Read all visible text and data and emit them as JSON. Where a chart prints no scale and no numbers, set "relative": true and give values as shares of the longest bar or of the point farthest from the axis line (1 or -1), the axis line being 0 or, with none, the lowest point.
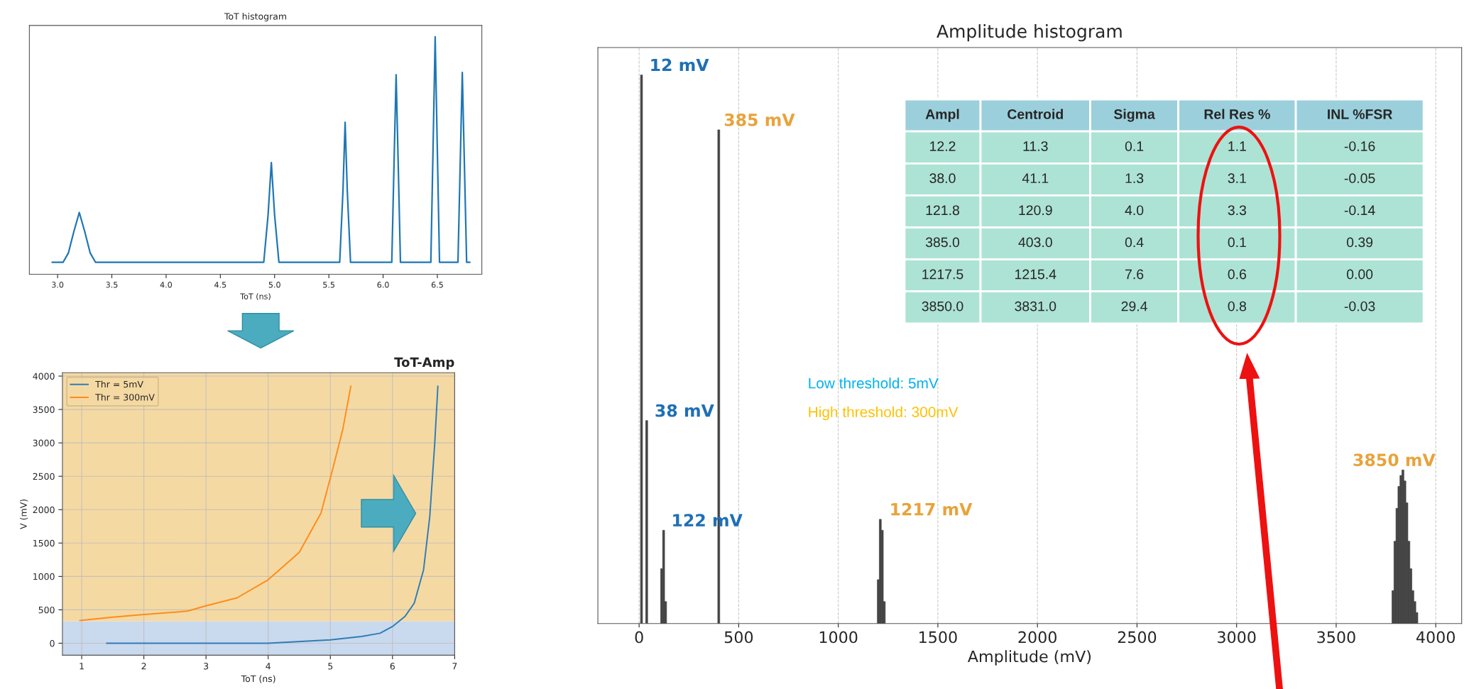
{
  "chart_data": [
    {
      "type": "line",
      "title": "ToT histogram",
      "xlabel": "ToT (ns)",
      "relative": true,
      "tick_labels": "x",
      "xlim": [
        2.74,
        6.91
      ],
      "xticks": [
        {
          "value": 3.0,
          "label": "3.0"
        },
        {
          "value": 3.5,
          "label": "3.5"
        },
        {
          "value": 4.0,
          "label": "4.0"
        },
        {
          "value": 4.5,
          "label": "4.5"
        },
        {
          "value": 5.0,
          "label": "5.0"
        },
        {
          "value": 5.5,
          "label": "5.5"
        },
        {
          "value": 6.0,
          "label": "6.0"
        },
        {
          "value": 6.5,
          "label": "6.5"
        }
      ],
      "grid": false,
      "series": [
        {
          "color": "#1f77b4",
          "x": [
            2.95,
            3.05,
            3.1,
            3.15,
            3.2,
            3.25,
            3.3,
            3.35,
            4.9,
            4.94,
            4.97,
            5.0,
            5.04,
            5.6,
            5.63,
            5.65,
            5.67,
            5.7,
            6.08,
            6.1,
            6.12,
            6.14,
            6.16,
            6.44,
            6.46,
            6.48,
            6.5,
            6.52,
            6.69,
            6.71,
            6.73,
            6.75,
            6.77,
            6.8
          ],
          "values": [
            0.05,
            0.05,
            0.09,
            0.18,
            0.26,
            0.18,
            0.09,
            0.05,
            0.05,
            0.25,
            0.47,
            0.25,
            0.05,
            0.05,
            0.35,
            0.64,
            0.35,
            0.05,
            0.05,
            0.45,
            0.84,
            0.45,
            0.05,
            0.05,
            0.52,
            1.0,
            0.52,
            0.05,
            0.05,
            0.45,
            0.85,
            0.45,
            0.05,
            0.05
          ]
        }
      ]
    },
    {
      "type": "line",
      "title": "ToT-Amp",
      "xlabel": "ToT (ns)",
      "ylabel": "V (mV)",
      "xlim": [
        0.69,
        7.0
      ],
      "xticks": [
        1,
        2,
        3,
        4,
        5,
        6,
        7
      ],
      "ylim": [
        -180,
        4050
      ],
      "yticks": [
        0,
        500,
        1000,
        1500,
        2000,
        2500,
        3000,
        3500,
        4000
      ],
      "grid": true,
      "legend": "top left",
      "bands": [
        {
          "axis": "y",
          "from": -180,
          "to": 330,
          "color": "#c9d9ee"
        },
        {
          "axis": "y",
          "from": 330,
          "to": 4050,
          "color": "#f5d9a3"
        }
      ],
      "series": [
        {
          "name": "Thr = 5mV",
          "color": "#2f7db5",
          "x": [
            1.4,
            2,
            3,
            4,
            5,
            5.5,
            5.8,
            6.0,
            6.2,
            6.35,
            6.5,
            6.6,
            6.68,
            6.73
          ],
          "values": [
            0,
            0,
            0,
            0,
            50,
            100,
            150,
            250,
            400,
            600,
            1100,
            1900,
            3000,
            3850
          ]
        },
        {
          "name": "Thr = 300mV",
          "color": "#ff8c1a",
          "x": [
            0.97,
            1.5,
            2,
            2.7,
            3,
            3.5,
            4,
            4.5,
            4.85,
            5.05,
            5.2,
            5.33
          ],
          "values": [
            340,
            390,
            430,
            480,
            560,
            680,
            950,
            1360,
            1950,
            2650,
            3200,
            3850
          ]
        }
      ]
    },
    {
      "type": "bar",
      "title": "Amplitude histogram",
      "xlabel": "Amplitude (mV)",
      "relative": true,
      "tick_labels": "x",
      "xlim": [
        -207,
        4130
      ],
      "xticks": [
        0,
        500,
        1000,
        1500,
        2000,
        2500,
        3000,
        3500,
        4000
      ],
      "grid": "x",
      "color": "#444444",
      "x": [
        12,
        38,
        113,
        123,
        133,
        400,
        1201,
        1211,
        1221,
        1231,
        3785,
        3795,
        3805,
        3815,
        3825,
        3835,
        3845,
        3855,
        3865,
        3875,
        3885,
        3895,
        3905
      ],
      "values": [
        1.0,
        0.37,
        0.1,
        0.17,
        0.04,
        0.9,
        0.08,
        0.19,
        0.17,
        0.04,
        0.06,
        0.15,
        0.21,
        0.25,
        0.27,
        0.28,
        0.26,
        0.22,
        0.15,
        0.1,
        0.06,
        0.04,
        0.02
      ],
      "annotations": [
        {
          "text": "12 mV",
          "x": 12,
          "y": 1.0
        },
        {
          "text": "385 mV",
          "x": 385,
          "y": 0.9
        },
        {
          "text": "38 mV",
          "x": 38,
          "y": 0.37
        },
        {
          "text": "122 mV",
          "x": 122,
          "y": 0.17
        },
        {
          "text": "1217 mV",
          "x": 1217,
          "y": 0.19
        },
        {
          "text": "3850 mV",
          "x": 3850,
          "y": 0.28
        },
        "Low threshold: 5mV",
        "High threshold: 300mV",
        "Ampl",
        "Centroid",
        "Sigma",
        "Rel Res %",
        "INL %FSR",
        "12.2",
        "11.3",
        "0.1",
        "1.1",
        "-0.16",
        "38.0",
        "41.1",
        "1.3",
        "3.1",
        "-0.05",
        "121.8",
        "120.9",
        "4.0",
        "3.3",
        "-0.14",
        "385.0",
        "403.0",
        "0.4",
        "0.1",
        "0.39",
        "1217.5",
        "1215.4",
        "7.6",
        "0.6",
        "0.00",
        "3850.0",
        "3831.0",
        "29.4",
        "0.8",
        "-0.03"
      ]
    }
  ]
}
